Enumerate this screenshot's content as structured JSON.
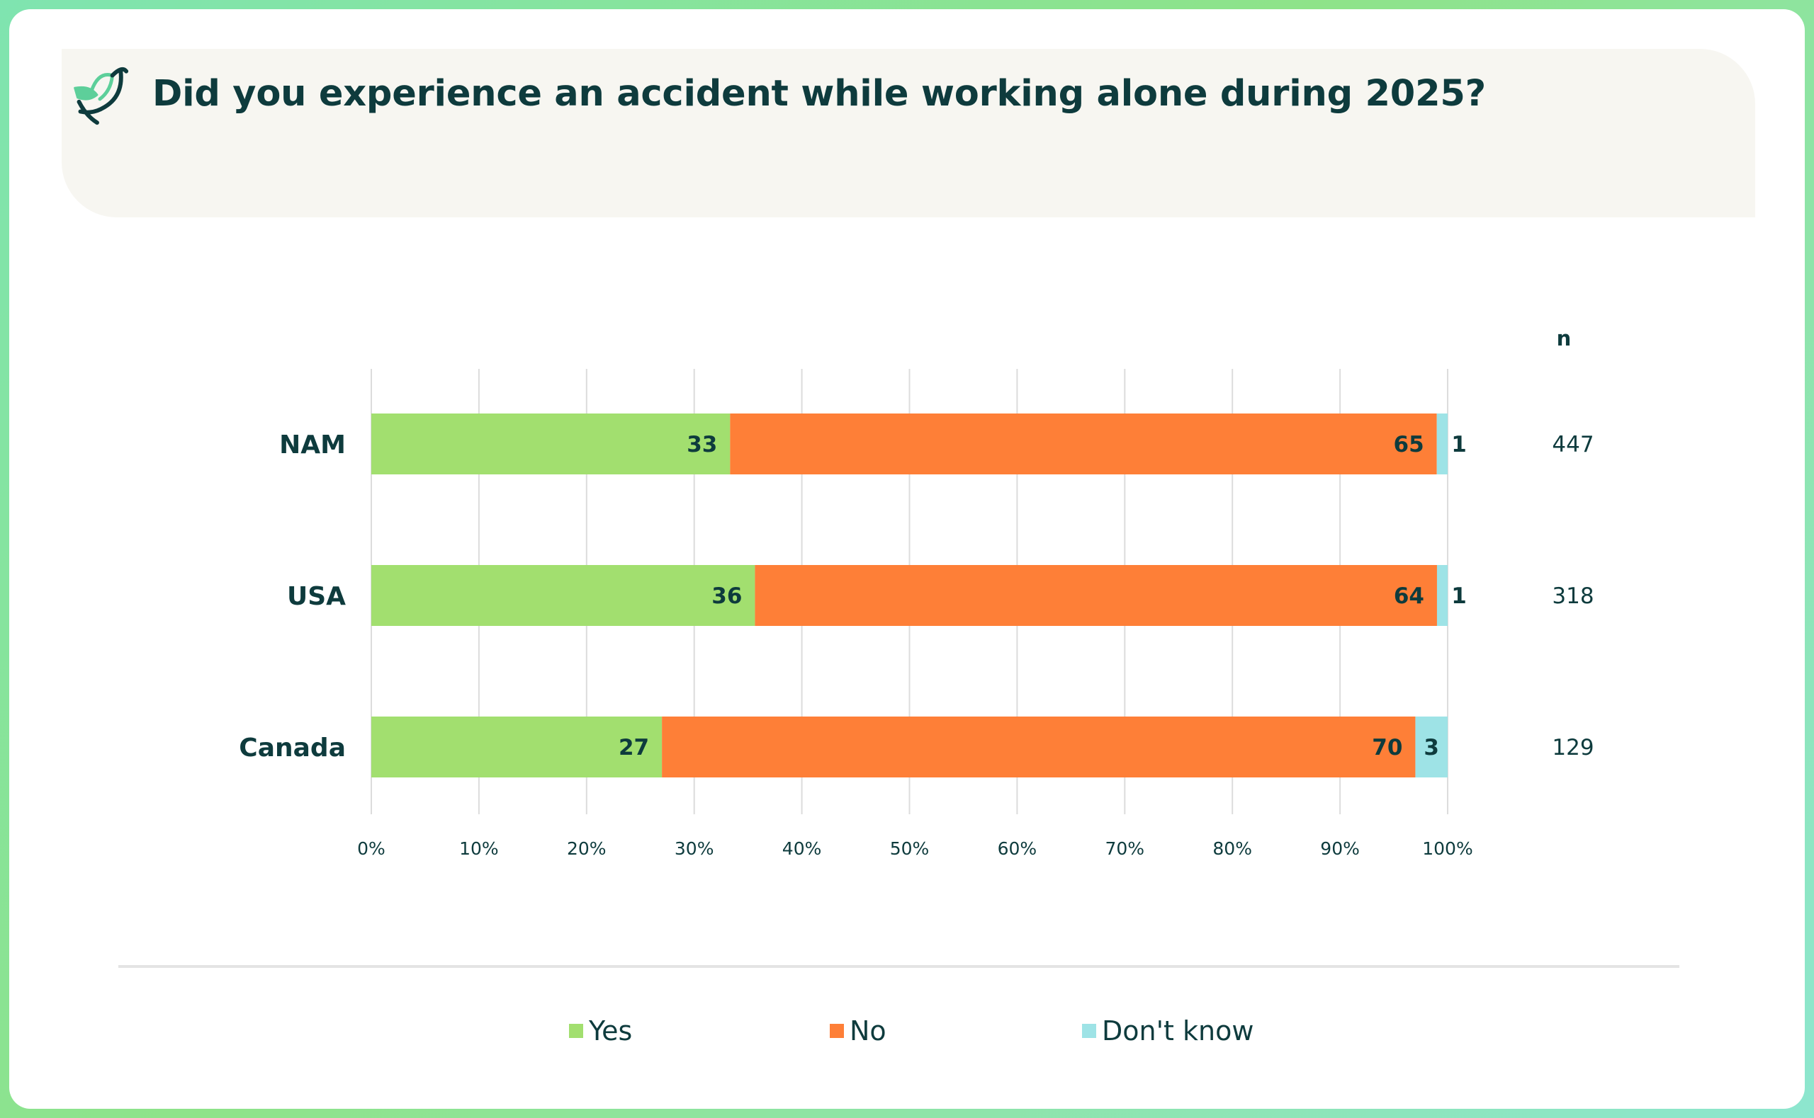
{
  "title": "Did you experience an accident while working alone during 2025?",
  "colors": {
    "yes": "#a2df6f",
    "no": "#fe7f37",
    "dont_know": "#9ee3e6",
    "text_dark": "#0e3b3d",
    "grid": "#dcdcdc"
  },
  "icons": {
    "logo": "bird-logo-icon"
  },
  "chart_data": {
    "type": "bar",
    "orientation": "horizontal",
    "stacked": true,
    "categories": [
      "NAM",
      "USA",
      "Canada"
    ],
    "series": [
      {
        "name": "Yes",
        "values": [
          33,
          36,
          27
        ]
      },
      {
        "name": "No",
        "values": [
          65,
          64,
          70
        ]
      },
      {
        "name": "Don't know",
        "values": [
          1,
          1,
          3
        ]
      }
    ],
    "n_header": "n",
    "n_values": [
      447,
      318,
      129
    ],
    "xlim": [
      0,
      100
    ],
    "xticks": [
      "0%",
      "10%",
      "20%",
      "30%",
      "40%",
      "50%",
      "60%",
      "70%",
      "80%",
      "90%",
      "100%"
    ],
    "grid": true,
    "legend_position": "bottom"
  }
}
